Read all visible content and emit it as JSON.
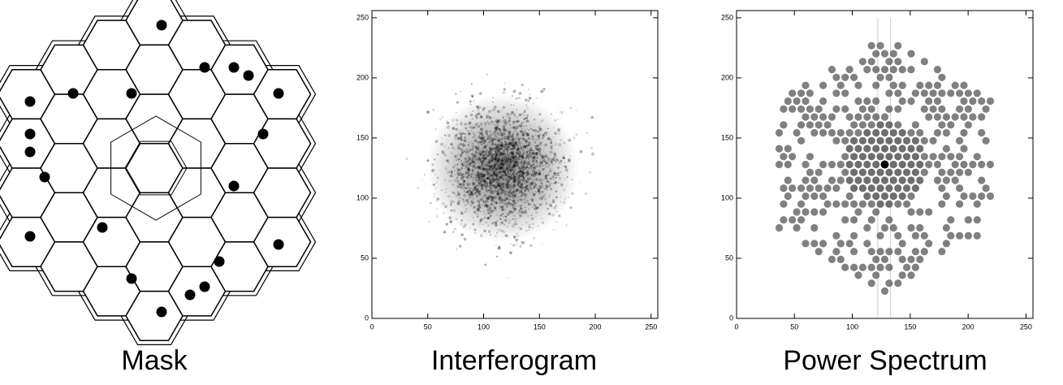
{
  "panels": [
    {
      "caption": "Mask"
    },
    {
      "caption": "Interferogram",
      "xlim": [
        0,
        256
      ],
      "ylim": [
        0,
        256
      ],
      "xticks": [
        0,
        50,
        100,
        150,
        200,
        250
      ],
      "yticks": [
        0,
        50,
        100,
        150,
        200,
        250
      ]
    },
    {
      "caption": "Power Spectrum",
      "xlim": [
        0,
        256
      ],
      "ylim": [
        0,
        256
      ],
      "xticks": [
        0,
        50,
        100,
        150,
        200,
        250
      ],
      "yticks": [
        0,
        50,
        100,
        150,
        200,
        250
      ]
    }
  ]
}
